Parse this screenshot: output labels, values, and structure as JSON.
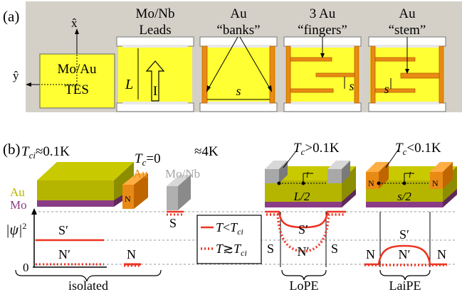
{
  "panel_a": {
    "label": "(a)",
    "axis_x": "x̂",
    "axis_y": "ŷ",
    "tes": {
      "line1": "Mo/Au",
      "line2": "TES"
    },
    "columns": [
      {
        "line1": "Mo/Nb",
        "line2": "Leads"
      },
      {
        "line1": "Au",
        "line2": "“banks”"
      },
      {
        "line1": "3 Au",
        "line2": "“fingers”"
      },
      {
        "line1": "Au",
        "line2": "“stem”"
      }
    ],
    "length_label": "L",
    "current_label": "I",
    "spacing_label": "s"
  },
  "panel_b": {
    "label": "(b)",
    "tc_isolated_T": "T",
    "tc_isolated_sub": "ci",
    "tc_isolated_val": "≈0.1K",
    "tc_normal_T": "T",
    "tc_normal_sub": "c",
    "tc_normal_val": "=0",
    "tc_leads_val": "≈4K",
    "tc_lope_T": "T",
    "tc_lope_sub": "c",
    "tc_lope_val": ">0.1K",
    "tc_laipe_T": "T",
    "tc_laipe_sub": "c",
    "tc_laipe_val": "<0.1K",
    "au_label": "Au",
    "mo_label": "Mo",
    "au_small": "Au",
    "n_small": "N",
    "mo_nb_small": "Mo/Nb",
    "s_small": "S",
    "half_L": "L/2",
    "half_s": "s/2",
    "l_label": "l",
    "psi": "|ψ|",
    "psi_sup": "2",
    "zero": "0",
    "s_prime": "S′",
    "n_prime": "N′",
    "s": "S",
    "n": "N",
    "legend_solid_T": "T",
    "legend_solid_op": "<",
    "legend_solid_sub": "ci",
    "legend_dot_T": "T",
    "legend_dot_op": "≳",
    "legend_dot_sub": "ci",
    "groups": [
      "isolated",
      "LoPE",
      "LaiPE"
    ]
  },
  "colors": {
    "yellow": "#ffff33",
    "olive_top": "#c9c900",
    "olive_side": "#8d8d00",
    "olive_front": "#b5b500",
    "purple": "#8a3c86",
    "orange": "#e98a15",
    "orange_dark": "#b55e00",
    "grey": "#a5a5a5",
    "red": "#ee3322"
  }
}
